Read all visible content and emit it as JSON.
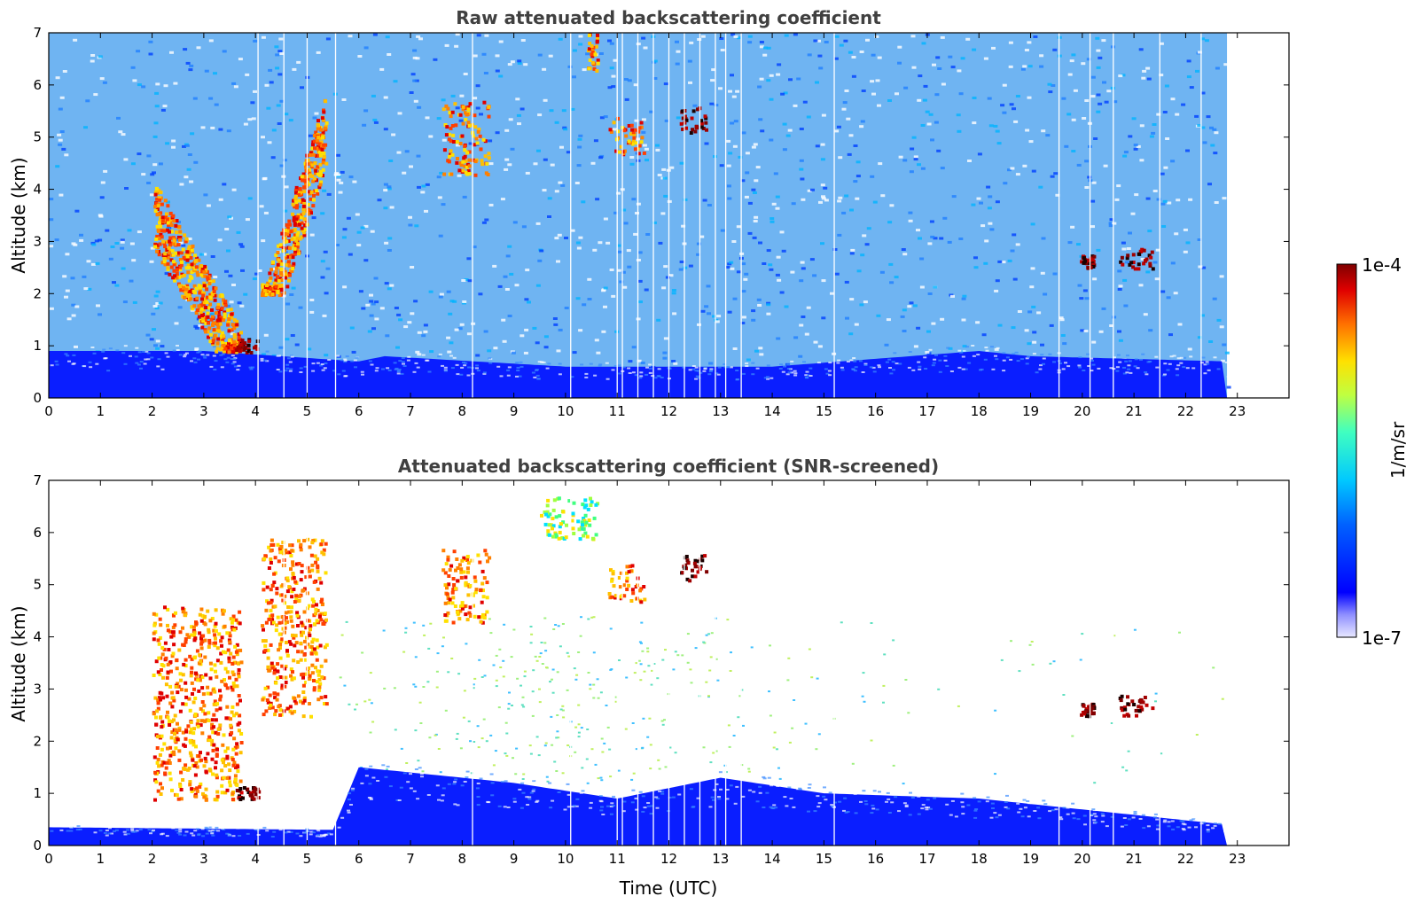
{
  "chart_data": [
    {
      "type": "heatmap",
      "title": "Raw attenuated backscattering coefficient",
      "xlabel": "",
      "ylabel": "Altitude (km)",
      "xlim": [
        0,
        24
      ],
      "ylim": [
        0,
        7
      ],
      "xticks": [
        0,
        1,
        2,
        3,
        4,
        5,
        6,
        7,
        8,
        9,
        10,
        11,
        12,
        13,
        14,
        15,
        16,
        17,
        18,
        19,
        20,
        21,
        22,
        23
      ],
      "yticks": [
        0,
        1,
        2,
        3,
        4,
        5,
        6,
        7
      ],
      "data_end_time": 22.8,
      "boundary_layer": [
        [
          0,
          0.9
        ],
        [
          3,
          0.9
        ],
        [
          6,
          0.7
        ],
        [
          6.5,
          0.8
        ],
        [
          10,
          0.6
        ],
        [
          14,
          0.6
        ],
        [
          18,
          0.9
        ],
        [
          19,
          0.8
        ],
        [
          22.8,
          0.7
        ]
      ],
      "features": [
        {
          "t0": 2.0,
          "t1": 3.7,
          "z0": 0.9,
          "z1": 4.2,
          "level": "high",
          "desc": "descending cloud"
        },
        {
          "t0": 3.6,
          "t1": 4.05,
          "z0": 0.9,
          "z1": 1.15,
          "level": "max"
        },
        {
          "t0": 4.1,
          "t1": 5.35,
          "z0": 2.0,
          "z1": 5.9,
          "level": "high",
          "desc": "rising cloud"
        },
        {
          "t0": 7.6,
          "t1": 8.5,
          "z0": 4.3,
          "z1": 5.7,
          "level": "high"
        },
        {
          "t0": 10.4,
          "t1": 10.6,
          "z0": 6.3,
          "z1": 7.0,
          "level": "high"
        },
        {
          "t0": 10.8,
          "t1": 11.5,
          "z0": 4.7,
          "z1": 5.4,
          "level": "high"
        },
        {
          "t0": 12.2,
          "t1": 12.7,
          "z0": 5.1,
          "z1": 5.6,
          "level": "max"
        },
        {
          "t0": 19.95,
          "t1": 20.2,
          "z0": 2.5,
          "z1": 2.75,
          "level": "max"
        },
        {
          "t0": 20.7,
          "t1": 21.35,
          "z0": 2.5,
          "z1": 2.9,
          "level": "max"
        }
      ],
      "colorbar": {
        "min_label": "1e-7",
        "max_label": "1e-4",
        "units": "1/m/sr",
        "scale": "log"
      }
    },
    {
      "type": "heatmap",
      "title": "Attenuated backscattering coefficient (SNR-screened)",
      "xlabel": "Time (UTC)",
      "ylabel": "Altitude (km)",
      "xlim": [
        0,
        24
      ],
      "ylim": [
        0,
        7
      ],
      "xticks": [
        0,
        1,
        2,
        3,
        4,
        5,
        6,
        7,
        8,
        9,
        10,
        11,
        12,
        13,
        14,
        15,
        16,
        17,
        18,
        19,
        20,
        21,
        22,
        23
      ],
      "yticks": [
        0,
        1,
        2,
        3,
        4,
        5,
        6,
        7
      ],
      "data_end_time": 22.8,
      "boundary_layer": [
        [
          0,
          0.35
        ],
        [
          5.5,
          0.3
        ],
        [
          6,
          1.5
        ],
        [
          9,
          1.2
        ],
        [
          11,
          0.9
        ],
        [
          13,
          1.3
        ],
        [
          15,
          1.0
        ],
        [
          18,
          0.9
        ],
        [
          22.8,
          0.4
        ]
      ],
      "features": [
        {
          "t0": 2.0,
          "t1": 3.7,
          "z0": 0.9,
          "z1": 4.6,
          "level": "high"
        },
        {
          "t0": 3.6,
          "t1": 4.05,
          "z0": 0.9,
          "z1": 1.15,
          "level": "max"
        },
        {
          "t0": 4.1,
          "t1": 5.35,
          "z0": 2.5,
          "z1": 5.9,
          "level": "high"
        },
        {
          "t0": 7.6,
          "t1": 8.5,
          "z0": 4.3,
          "z1": 5.7,
          "level": "high"
        },
        {
          "t0": 9.5,
          "t1": 10.6,
          "z0": 5.9,
          "z1": 6.7,
          "level": "mid"
        },
        {
          "t0": 10.8,
          "t1": 11.5,
          "z0": 4.7,
          "z1": 5.4,
          "level": "high"
        },
        {
          "t0": 12.2,
          "t1": 12.7,
          "z0": 5.1,
          "z1": 5.6,
          "level": "max"
        },
        {
          "t0": 19.95,
          "t1": 20.2,
          "z0": 2.5,
          "z1": 2.75,
          "level": "max"
        },
        {
          "t0": 20.7,
          "t1": 21.35,
          "z0": 2.5,
          "z1": 2.9,
          "level": "max"
        }
      ],
      "colorbar": {
        "min_label": "1e-7",
        "max_label": "1e-4",
        "units": "1/m/sr",
        "scale": "log"
      }
    }
  ],
  "colors": {
    "title": "#404040",
    "jet_low": "#0000ff",
    "jet_high": "#7f0000"
  }
}
